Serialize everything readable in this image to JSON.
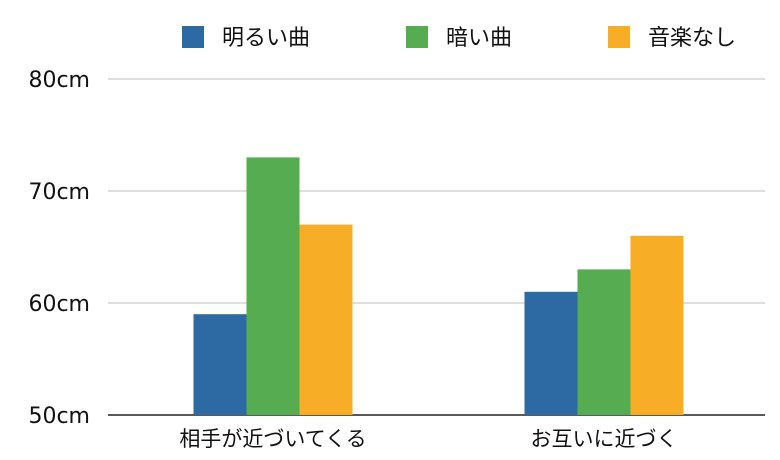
{
  "chart_data": {
    "type": "bar",
    "categories": [
      "相手が近づいてくる",
      "お互いに近づく"
    ],
    "series": [
      {
        "name": "明るい曲",
        "values": [
          59,
          61
        ],
        "color": "#2d6aa4"
      },
      {
        "name": "暗い曲",
        "values": [
          73,
          63
        ],
        "color": "#56ac50"
      },
      {
        "name": "音楽なし",
        "values": [
          67,
          66
        ],
        "color": "#f7ae26"
      }
    ],
    "ylim": [
      50,
      80
    ],
    "yticks": [
      "50cm",
      "60cm",
      "70cm",
      "80cm"
    ],
    "ytick_values": [
      50,
      60,
      70,
      80
    ],
    "grid": true,
    "legend_position": "top"
  }
}
